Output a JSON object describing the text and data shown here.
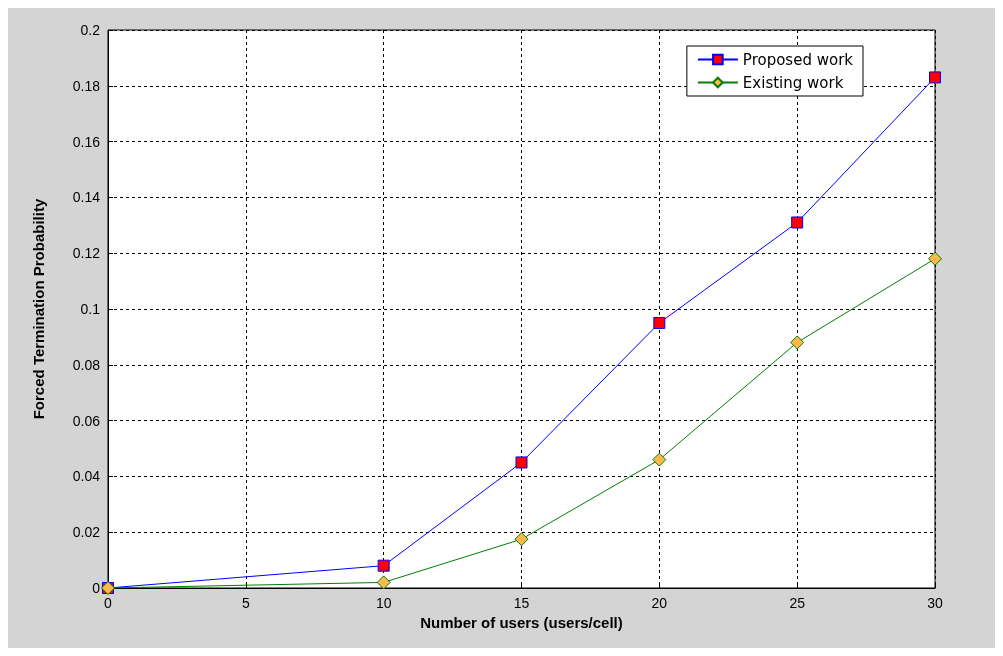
{
  "chart_data": {
    "type": "line",
    "xlabel": "Number of users (users/cell)",
    "ylabel": "Forced Termination Probability",
    "x": [
      0,
      10,
      15,
      20,
      25,
      30
    ],
    "series": [
      {
        "name": "Proposed work",
        "color": "#0000ff",
        "marker": "square",
        "colors": [
          "#ff0000",
          "#ff0000",
          "#ff0000",
          "#ff0000",
          "#ff0000",
          "#ff0000"
        ],
        "values": [
          0,
          0.008,
          0.045,
          0.095,
          0.131,
          0.183
        ]
      },
      {
        "name": "Existing work",
        "color": "#008000",
        "marker": "diamond",
        "colors": [
          "#ffb84d",
          "#ffb84d",
          "#ffb84d",
          "#ffb84d",
          "#ffb84d",
          "#ffb84d"
        ],
        "values": [
          0,
          0.002,
          0.0175,
          0.046,
          0.088,
          0.118
        ]
      }
    ],
    "xlim": [
      0,
      30
    ],
    "xticks": [
      0,
      5,
      10,
      15,
      20,
      25,
      30
    ],
    "ylim": [
      0,
      0.2
    ],
    "yticks": [
      0,
      0.02,
      0.04,
      0.06,
      0.08,
      0.1,
      0.12,
      0.14,
      0.16,
      0.18,
      0.2
    ],
    "grid": true,
    "legend": "top right",
    "line_style": "solid"
  }
}
